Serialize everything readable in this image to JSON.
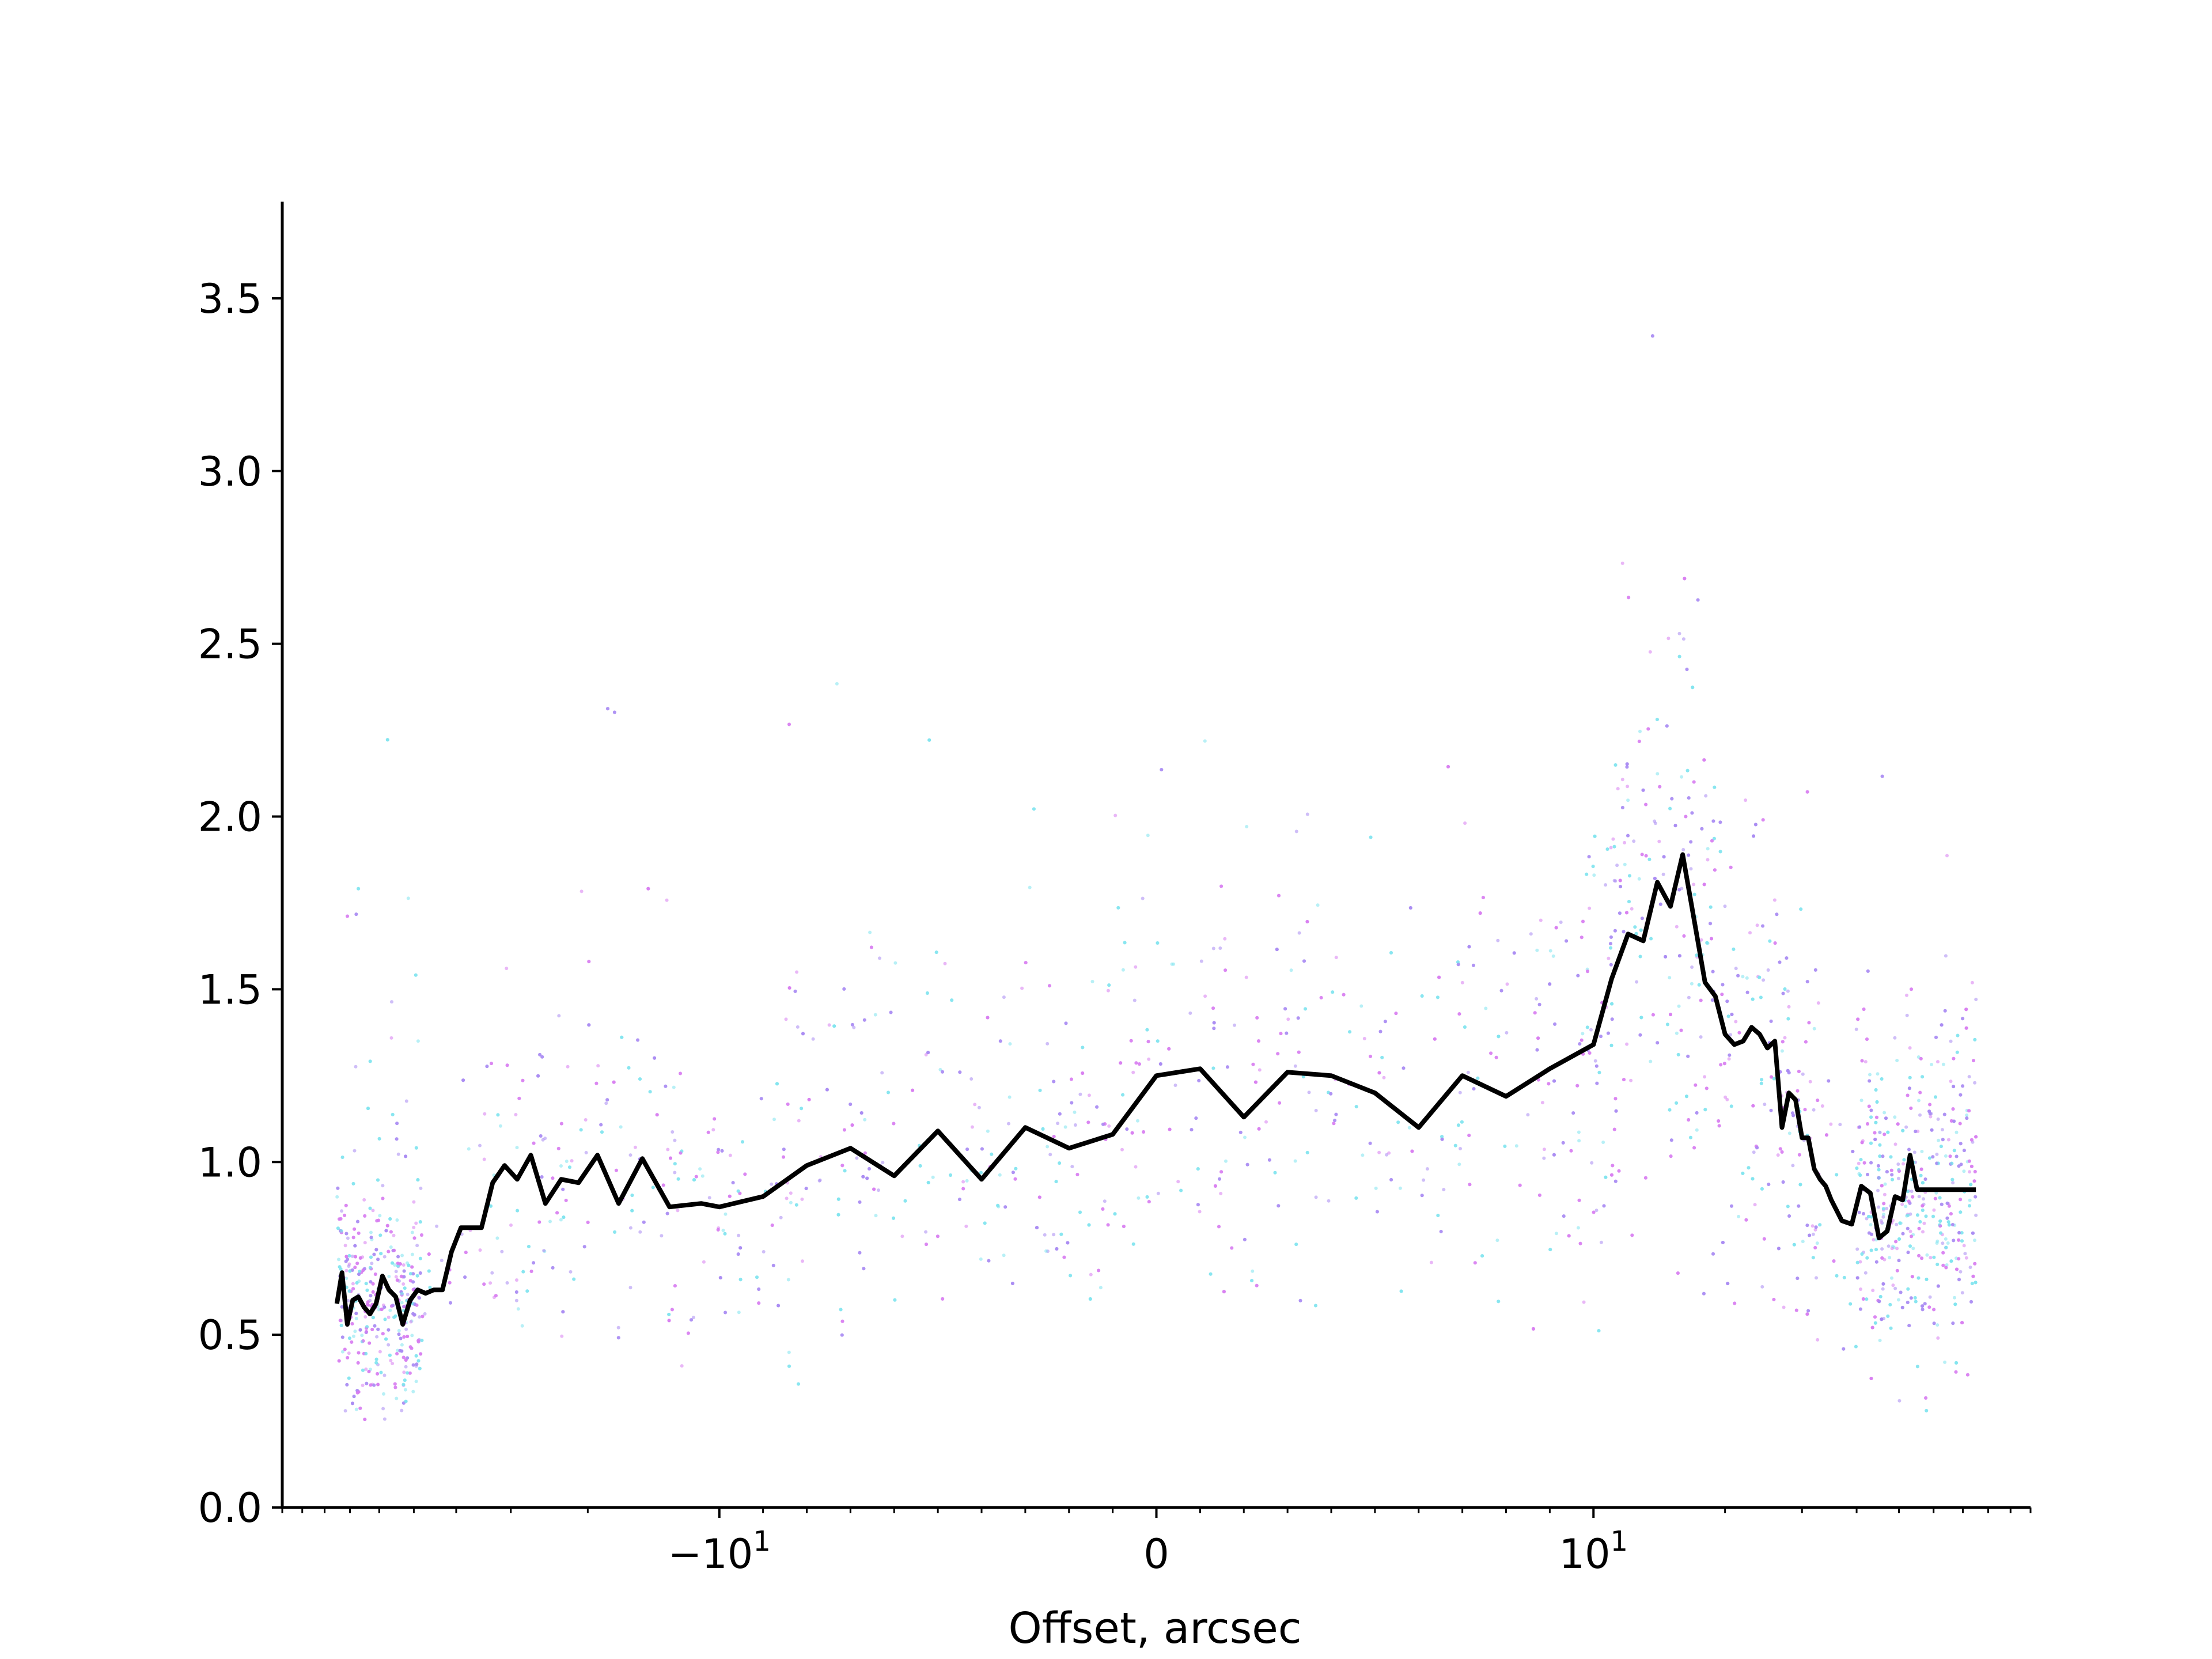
{
  "chart_data": {
    "type": "line",
    "xlabel": "Offset, arcsec",
    "ylabel": "",
    "x_scale": "symlog",
    "x_linthresh": 10,
    "xlim": [
      -100,
      100
    ],
    "ylim": [
      0,
      3.78
    ],
    "grid": false,
    "legend": "none",
    "y_ticks": [
      {
        "value": 0.0,
        "label": "0.0"
      },
      {
        "value": 0.5,
        "label": "0.5"
      },
      {
        "value": 1.0,
        "label": "1.0"
      },
      {
        "value": 1.5,
        "label": "1.5"
      },
      {
        "value": 2.0,
        "label": "2.0"
      },
      {
        "value": 2.5,
        "label": "2.5"
      },
      {
        "value": 3.0,
        "label": "3.0"
      },
      {
        "value": 3.5,
        "label": "3.5"
      }
    ],
    "x_ticks": [
      {
        "value": -10,
        "label_base": "−10",
        "label_exp": "1"
      },
      {
        "value": 0,
        "label_base": "0",
        "label_exp": ""
      },
      {
        "value": 10,
        "label_base": "10",
        "label_exp": "1"
      }
    ],
    "series": [
      {
        "type": "line",
        "color": "#000000",
        "x": [
          -75,
          -73,
          -71,
          -69,
          -67,
          -65,
          -63,
          -61,
          -59,
          -57,
          -55,
          -53,
          -51,
          -49,
          -47,
          -45,
          -43,
          -41,
          -39,
          -37,
          -35,
          -33,
          -31,
          -29,
          -27,
          -25,
          -23,
          -21,
          -19,
          -17,
          -15,
          -13,
          -11,
          -10,
          -9,
          -8,
          -7,
          -6,
          -5,
          -4,
          -3,
          -2,
          -1,
          0,
          1,
          2,
          3,
          4,
          5,
          6,
          7,
          8,
          9,
          10,
          11,
          12,
          13,
          14,
          15,
          16,
          17,
          18,
          19,
          20,
          21,
          22,
          23,
          24,
          25,
          26,
          27,
          28,
          29,
          30,
          31,
          32,
          33,
          34,
          35,
          36,
          37,
          39,
          41,
          43,
          45,
          47,
          49,
          51,
          53,
          55,
          57,
          59,
          61,
          63,
          65,
          67,
          69,
          71,
          73,
          75
        ],
        "y": [
          0.59,
          0.68,
          0.53,
          0.6,
          0.61,
          0.58,
          0.56,
          0.59,
          0.67,
          0.63,
          0.61,
          0.53,
          0.6,
          0.63,
          0.62,
          0.63,
          0.63,
          0.74,
          0.81,
          0.81,
          0.81,
          0.94,
          0.99,
          0.95,
          1.02,
          0.88,
          0.95,
          0.94,
          1.02,
          0.88,
          1.01,
          0.87,
          0.88,
          0.87,
          0.9,
          0.99,
          1.04,
          0.96,
          1.09,
          0.95,
          1.1,
          1.04,
          1.08,
          1.25,
          1.27,
          1.13,
          1.26,
          1.25,
          1.2,
          1.1,
          1.25,
          1.19,
          1.27,
          1.34,
          1.53,
          1.66,
          1.64,
          1.81,
          1.74,
          1.89,
          1.7,
          1.52,
          1.48,
          1.37,
          1.34,
          1.35,
          1.39,
          1.37,
          1.33,
          1.35,
          1.1,
          1.2,
          1.18,
          1.07,
          1.07,
          0.98,
          0.95,
          0.93,
          0.89,
          0.86,
          0.83,
          0.82,
          0.93,
          0.91,
          0.78,
          0.8,
          0.9,
          0.89,
          1.02,
          0.92,
          0.92,
          0.92,
          0.92,
          0.92,
          0.92,
          0.92,
          0.92,
          0.92,
          0.92,
          0.92
        ]
      },
      {
        "type": "scatter",
        "name": "",
        "colors": [
          "#d77cf0",
          "#7ee3ef",
          "#a888f2"
        ],
        "note_density": "dense near x edges and around x=15 to 25",
        "x_range": [
          -75,
          75
        ],
        "y_range": [
          0,
          3.78
        ]
      }
    ]
  }
}
